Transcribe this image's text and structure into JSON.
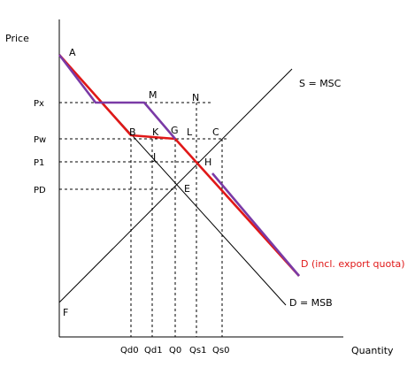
{
  "axes": {
    "y_title": "Price",
    "x_title": "Quantity"
  },
  "price_ticks": {
    "px": "Px",
    "pw": "Pw",
    "p1": "P1",
    "pd": "PD"
  },
  "quantity_ticks": {
    "qd0": "Qd0",
    "qd1": "Qd1",
    "q0": "Q0",
    "qs1": "Qs1",
    "qs0": "Qs0"
  },
  "curves": {
    "supply": "S = MSC",
    "demand_msb": "D = MSB",
    "demand_quota": "D (incl. export quota)"
  },
  "points": {
    "a": "A",
    "b": "B",
    "c": "C",
    "e": "E",
    "f": "F",
    "g": "G",
    "h": "H",
    "j": "J",
    "k": "K",
    "l": "L",
    "m": "M",
    "n": "N"
  },
  "colors": {
    "quota_demand": "#e01818",
    "overlay": "#7a3aa6"
  }
}
